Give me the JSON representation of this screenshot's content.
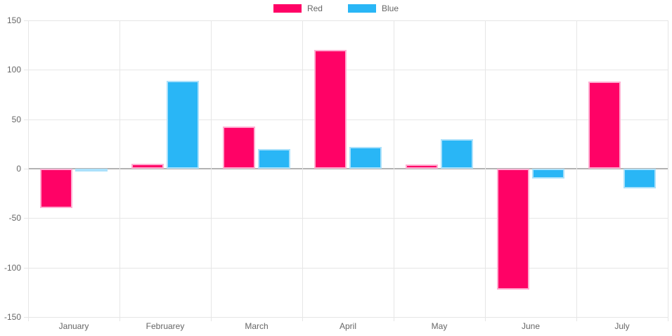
{
  "chart_data": {
    "type": "bar",
    "title": "",
    "xlabel": "",
    "ylabel": "",
    "categories": [
      "January",
      "Februarey",
      "March",
      "April",
      "May",
      "June",
      "July"
    ],
    "series": [
      {
        "name": "Red",
        "color": "#FF0266",
        "border_color": "#FFADD1",
        "values": [
          -40,
          5,
          43,
          120,
          4,
          -122,
          88
        ]
      },
      {
        "name": "Blue",
        "color": "#29B6F6",
        "border_color": "#ABE1FB",
        "values": [
          -3,
          89,
          20,
          22,
          30,
          -10,
          -20
        ]
      }
    ],
    "ylim": [
      -150,
      150
    ],
    "y_ticks": [
      -150,
      -100,
      -50,
      0,
      50,
      100,
      150
    ],
    "grid": true,
    "legend_position": "top",
    "grid_color": "#e6e6e6",
    "zero_line_color": "#b3b3b3",
    "axis_text_color": "#666666"
  }
}
